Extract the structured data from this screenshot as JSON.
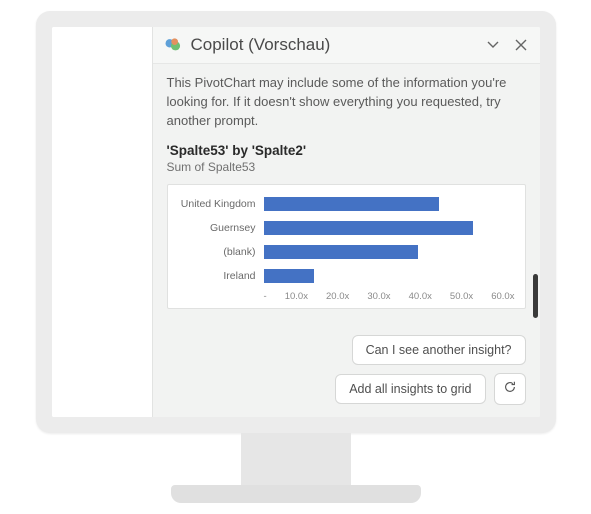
{
  "header": {
    "title": "Copilot (Vorschau)"
  },
  "message": {
    "intro_text": "This PivotChart may include some of the information you're looking for. If it doesn't show everything you requested, try another prompt."
  },
  "chart": {
    "type": "bar-horizontal",
    "title": "'Spalte53' by 'Spalte2'",
    "subtitle": "Sum of Spalte53",
    "bar_color": "#4472c4",
    "background_color": "#ffffff",
    "label_color": "#6a6a6a",
    "label_fontsize": 10.5,
    "tick_fontsize": 9.5,
    "xlim_max": 60,
    "categories": [
      "United Kingdom",
      "Guernsey",
      "(blank)",
      "Ireland"
    ],
    "values": [
      42,
      50,
      37,
      12
    ],
    "ticks": [
      "-",
      "10.0x",
      "20.0x",
      "30.0x",
      "40.0x",
      "50.0x",
      "60.0x"
    ]
  },
  "suggestions": {
    "pill1": "Can I see another insight?",
    "pill2": "Add all insights to grid"
  }
}
